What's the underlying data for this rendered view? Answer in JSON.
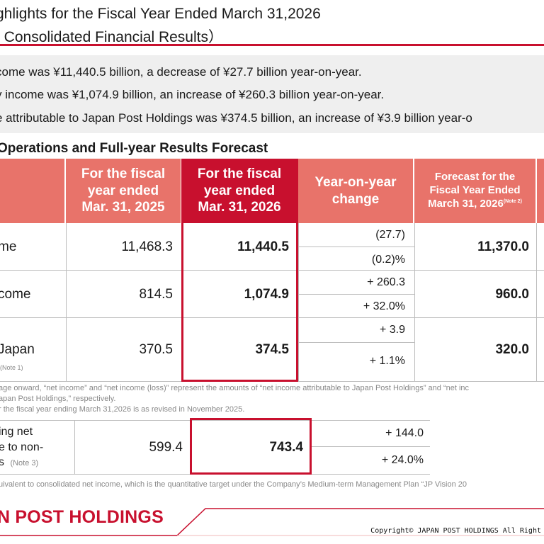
{
  "header": {
    "title_line1": "ghlights for the Fiscal Year Ended March 31,2026",
    "title_line2": "f Consolidated Financial Results）"
  },
  "summary": [
    "come was ¥11,440.5 billion, a decrease of ¥27.7 billion year-on-year.",
    "y income was ¥1,074.9 billion, an increase of ¥260.3 billion year-on-year.",
    "e attributable to Japan Post Holdings was ¥374.5 billion, an increase of ¥3.9 billion year-o"
  ],
  "section_title": "Operations and Full-year Results Forecast",
  "table": {
    "headers": {
      "prev": "For the fiscal year ended Mar. 31, 2025",
      "curr": "For the fiscal year ended Mar. 31, 2026",
      "yoy": "Year-on-year change",
      "forecast": "Forecast for the Fiscal Year Ended March 31, 2026",
      "forecast_note": "(Note 2)"
    },
    "rows": [
      {
        "label": "me",
        "note": "",
        "prev": "11,468.3",
        "curr": "11,440.5",
        "chg_abs": "(27.7)",
        "chg_pct": "(0.2)%",
        "forecast": "11,370.0"
      },
      {
        "label": "come",
        "note": "",
        "prev": "814.5",
        "curr": "1,074.9",
        "chg_abs": "+ 260.3",
        "chg_pct": "+ 32.0%",
        "forecast": "960.0"
      },
      {
        "label": "Japan",
        "note": "(Note 1)",
        "prev": "370.5",
        "curr": "374.5",
        "chg_abs": "+ 3.9",
        "chg_pct": "+ 1.1%",
        "forecast": "320.0"
      }
    ]
  },
  "footnotes": {
    "line1": "age onward, “net income” and “net income (loss)” represent the amounts of “net income attributable to Japan Post Holdings” and “net inc",
    "line2": "apan Post Holdings,” respectively.",
    "line3": "r the fiscal year ending March 31,2026 is as revised in November 2025."
  },
  "second_table": {
    "label_line1": "ing net",
    "label_line2": "e to non-",
    "label_line3": "s",
    "label_note": "(Note 3)",
    "prev": "599.4",
    "curr": "743.4",
    "chg_abs": "+ 144.0",
    "chg_pct": "+ 24.0%"
  },
  "footnote3": "uivalent to consolidated net income, which is the quantitative target under the Company’s Medium-term Management Plan “JP Vision 20",
  "footer": {
    "logo": "N POST HOLDINGS",
    "copyright": "Copyright© JAPAN POST HOLDINGS All Right"
  },
  "colors": {
    "accent_red": "#c8102e",
    "header_salmon": "#e8736a",
    "summary_gray": "#efefef"
  }
}
